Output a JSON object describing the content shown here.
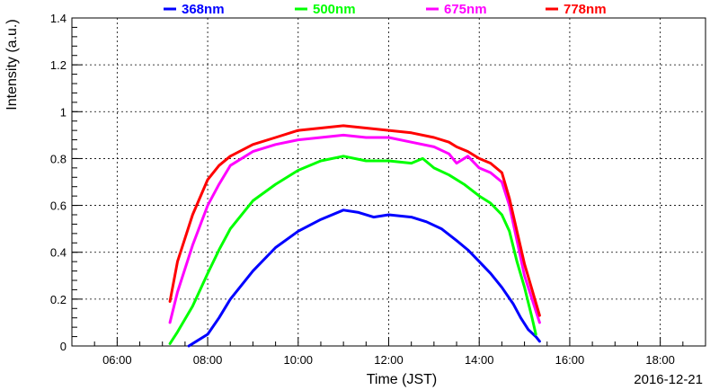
{
  "chart_data": {
    "type": "line",
    "xlabel": "Time (JST)",
    "ylabel": "Intensity (a.u.)",
    "date_label": "2016-12-21",
    "xlim": [
      "05:00",
      "19:00"
    ],
    "ylim": [
      0,
      1.4
    ],
    "x_ticks": [
      "06:00",
      "08:00",
      "10:00",
      "12:00",
      "14:00",
      "16:00",
      "18:00"
    ],
    "y_ticks": [
      "0",
      "0.2",
      "0.4",
      "0.6",
      "0.8",
      "1",
      "1.2",
      "1.4"
    ],
    "grid": true,
    "legend_position": "top",
    "series": [
      {
        "name": "368nm",
        "color": "#0000ff",
        "x": [
          "07:35",
          "07:45",
          "08:00",
          "08:15",
          "08:30",
          "09:00",
          "09:30",
          "10:00",
          "10:30",
          "11:00",
          "11:20",
          "11:40",
          "12:00",
          "12:30",
          "12:50",
          "13:10",
          "13:30",
          "13:45",
          "14:00",
          "14:15",
          "14:30",
          "14:45",
          "14:55",
          "15:05",
          "15:15",
          "15:20"
        ],
        "values": [
          0.0,
          0.02,
          0.05,
          0.12,
          0.2,
          0.32,
          0.42,
          0.49,
          0.54,
          0.58,
          0.57,
          0.55,
          0.56,
          0.55,
          0.53,
          0.5,
          0.45,
          0.41,
          0.36,
          0.31,
          0.25,
          0.18,
          0.12,
          0.07,
          0.04,
          0.02
        ]
      },
      {
        "name": "500nm",
        "color": "#00ff00",
        "x": [
          "07:10",
          "07:20",
          "07:40",
          "08:00",
          "08:15",
          "08:30",
          "09:00",
          "09:30",
          "10:00",
          "10:30",
          "11:00",
          "11:30",
          "12:00",
          "12:30",
          "12:45",
          "13:00",
          "13:20",
          "13:40",
          "14:00",
          "14:15",
          "14:30",
          "14:40",
          "14:50",
          "15:00",
          "15:10",
          "15:15"
        ],
        "values": [
          0.01,
          0.06,
          0.17,
          0.31,
          0.41,
          0.5,
          0.62,
          0.69,
          0.75,
          0.79,
          0.81,
          0.79,
          0.79,
          0.78,
          0.8,
          0.76,
          0.73,
          0.69,
          0.64,
          0.61,
          0.56,
          0.49,
          0.36,
          0.25,
          0.12,
          0.05
        ]
      },
      {
        "name": "675nm",
        "color": "#ff00ff",
        "x": [
          "07:10",
          "07:20",
          "07:40",
          "08:00",
          "08:15",
          "08:30",
          "09:00",
          "09:30",
          "10:00",
          "10:30",
          "11:00",
          "11:30",
          "12:00",
          "12:30",
          "13:00",
          "13:20",
          "13:30",
          "13:45",
          "14:00",
          "14:15",
          "14:30",
          "14:40",
          "14:50",
          "15:00",
          "15:10",
          "15:20"
        ],
        "values": [
          0.1,
          0.23,
          0.43,
          0.6,
          0.69,
          0.77,
          0.83,
          0.86,
          0.88,
          0.89,
          0.9,
          0.89,
          0.89,
          0.87,
          0.85,
          0.82,
          0.78,
          0.81,
          0.76,
          0.74,
          0.7,
          0.6,
          0.45,
          0.3,
          0.2,
          0.1
        ]
      },
      {
        "name": "778nm",
        "color": "#ff0000",
        "x": [
          "07:10",
          "07:20",
          "07:40",
          "08:00",
          "08:15",
          "08:30",
          "09:00",
          "09:30",
          "10:00",
          "10:30",
          "11:00",
          "11:30",
          "12:00",
          "12:30",
          "13:00",
          "13:20",
          "13:30",
          "13:45",
          "14:00",
          "14:15",
          "14:30",
          "14:40",
          "14:50",
          "15:00",
          "15:10",
          "15:20"
        ],
        "values": [
          0.19,
          0.36,
          0.56,
          0.71,
          0.77,
          0.81,
          0.86,
          0.89,
          0.92,
          0.93,
          0.94,
          0.93,
          0.92,
          0.91,
          0.89,
          0.87,
          0.85,
          0.83,
          0.8,
          0.78,
          0.74,
          0.63,
          0.49,
          0.35,
          0.24,
          0.13
        ]
      }
    ]
  }
}
